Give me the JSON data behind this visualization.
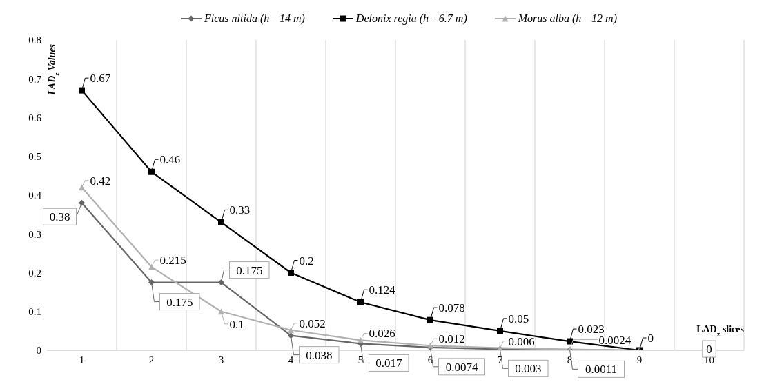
{
  "chart_data": {
    "type": "line",
    "xlabel": "LAD$_{z}$ slices",
    "ylabel": "LAD$_{z}$ Values",
    "categories": [
      "1",
      "2",
      "3",
      "4",
      "5",
      "6",
      "7",
      "8",
      "9",
      "10"
    ],
    "series": [
      {
        "name": "Ficus nitida (h= 14 m)",
        "color": "#666666",
        "marker": "diamond",
        "values": [
          0.38,
          0.175,
          0.175,
          0.038,
          0.017,
          0.0074,
          0.003,
          0.0011,
          0,
          0
        ],
        "value_labels": [
          "0.38",
          "0.175",
          "0.175",
          "0.038",
          "0.017",
          "0.0074",
          "0.003",
          "0.0011",
          null,
          "0"
        ]
      },
      {
        "name": "Delonix regia (h= 6.7 m)",
        "color": "#000000",
        "marker": "square",
        "values": [
          0.67,
          0.46,
          0.33,
          0.2,
          0.124,
          0.078,
          0.05,
          0.023,
          0,
          null
        ],
        "value_labels": [
          "0.67",
          "0.46",
          "0.33",
          "0.2",
          "0.124",
          "0.078",
          "0.05",
          "0.023",
          "0",
          null
        ]
      },
      {
        "name": "Morus alba  (h= 12 m)",
        "color": "#b0b0b0",
        "marker": "triangle",
        "values": [
          0.42,
          0.215,
          0.1,
          0.052,
          0.026,
          0.012,
          0.006,
          0.0024,
          0,
          null
        ],
        "value_labels": [
          "0.42",
          "0.215",
          "0.1",
          "0.052",
          "0.026",
          "0.012",
          "0.006",
          "0.0024",
          null,
          null
        ]
      }
    ],
    "ylim": [
      0,
      0.8
    ],
    "yticks": [
      0,
      0.1,
      0.2,
      0.3,
      0.4,
      0.5,
      0.6,
      0.7,
      0.8
    ],
    "grid": "x",
    "legend": "top"
  }
}
